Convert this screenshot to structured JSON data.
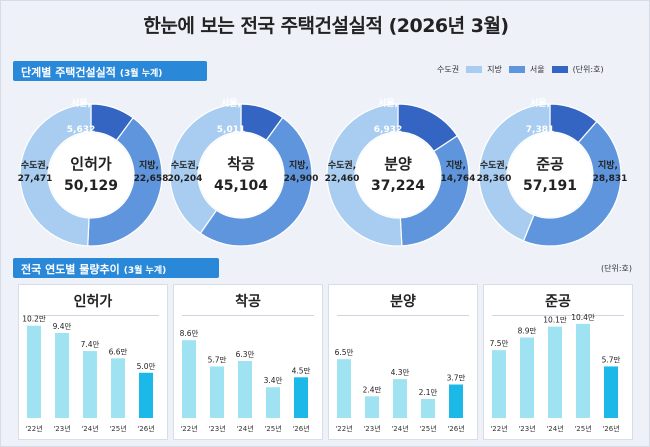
{
  "title": "한눈에 보는 전국 주택건설실적 (2026년 3월)",
  "section1": {
    "label": "단계별 주택건설실적",
    "sub": "(3월 누계)"
  },
  "section2": {
    "label": "전국 연도별 물량추이",
    "sub": "(3월 누계)"
  },
  "legend": {
    "metro": "수도권",
    "local": "지방",
    "seoul": "서울",
    "unit": "(단위:호)"
  },
  "unit2": "(단위:호)",
  "colors": {
    "metro": "#a9cdf0",
    "local": "#5f95dc",
    "seoul": "#3565c2",
    "bar": "#9fe3f3",
    "bar_current": "#1cb8e8"
  },
  "chart_data": [
    {
      "type": "pie",
      "name": "인허가",
      "total": "50,129",
      "segments": [
        {
          "label": "서울,",
          "value": 5632,
          "display": "5,632",
          "key": "seoul"
        },
        {
          "label": "지방,",
          "value": 22658,
          "display": "22,658",
          "key": "local"
        },
        {
          "label": "수도권,",
          "value": 27471,
          "display": "27,471",
          "key": "metro"
        }
      ]
    },
    {
      "type": "pie",
      "name": "착공",
      "total": "45,104",
      "segments": [
        {
          "label": "서울,",
          "value": 5011,
          "display": "5,011",
          "key": "seoul"
        },
        {
          "label": "지방,",
          "value": 24900,
          "display": "24,900",
          "key": "local"
        },
        {
          "label": "수도권,",
          "value": 20204,
          "display": "20,204",
          "key": "metro"
        }
      ]
    },
    {
      "type": "pie",
      "name": "분양",
      "total": "37,224",
      "segments": [
        {
          "label": "서울,",
          "value": 6932,
          "display": "6,932",
          "key": "seoul"
        },
        {
          "label": "지방,",
          "value": 14764,
          "display": "14,764",
          "key": "local"
        },
        {
          "label": "수도권,",
          "value": 22460,
          "display": "22,460",
          "key": "metro"
        }
      ]
    },
    {
      "type": "pie",
      "name": "준공",
      "total": "57,191",
      "segments": [
        {
          "label": "서울,",
          "value": 7381,
          "display": "7,381",
          "key": "seoul"
        },
        {
          "label": "지방,",
          "value": 28831,
          "display": "28,831",
          "key": "local"
        },
        {
          "label": "수도권,",
          "value": 28360,
          "display": "28,360",
          "key": "metro"
        }
      ]
    },
    {
      "type": "bar",
      "title": "인허가",
      "categories": [
        "'22년",
        "'23년",
        "'24년",
        "'25년",
        "'26년"
      ],
      "values": [
        10.2,
        9.4,
        7.4,
        6.6,
        5.0
      ],
      "labels": [
        "10.2만",
        "9.4만",
        "7.4만",
        "6.6만",
        "5.0만"
      ]
    },
    {
      "type": "bar",
      "title": "착공",
      "categories": [
        "'22년",
        "'23년",
        "'24년",
        "'25년",
        "'26년"
      ],
      "values": [
        8.6,
        5.7,
        6.3,
        3.4,
        4.5
      ],
      "labels": [
        "8.6만",
        "5.7만",
        "6.3만",
        "3.4만",
        "4.5만"
      ]
    },
    {
      "type": "bar",
      "title": "분양",
      "categories": [
        "'22년",
        "'23년",
        "'24년",
        "'25년",
        "'26년"
      ],
      "values": [
        6.5,
        2.4,
        4.3,
        2.1,
        3.7
      ],
      "labels": [
        "6.5만",
        "2.4만",
        "4.3만",
        "2.1만",
        "3.7만"
      ]
    },
    {
      "type": "bar",
      "title": "준공",
      "categories": [
        "'22년",
        "'23년",
        "'24년",
        "'25년",
        "'26년"
      ],
      "values": [
        7.5,
        8.9,
        10.1,
        10.4,
        5.7
      ],
      "labels": [
        "7.5만",
        "8.9만",
        "10.1만",
        "10.4만",
        "5.7만"
      ]
    }
  ]
}
